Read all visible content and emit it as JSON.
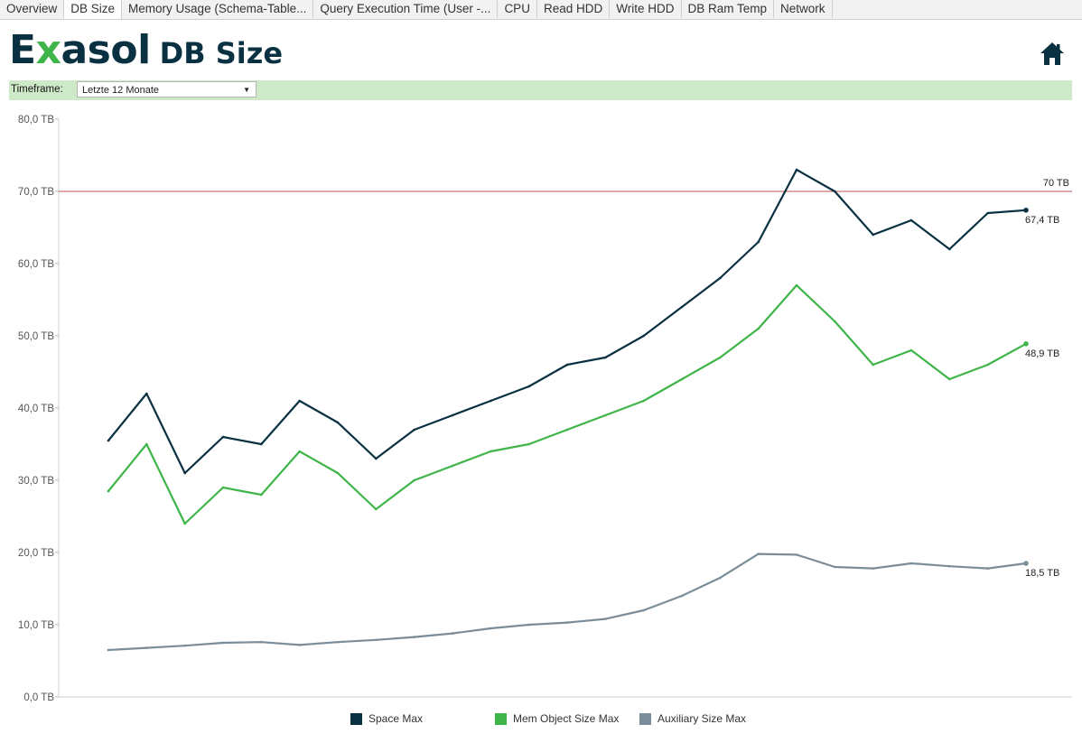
{
  "tabs": [
    {
      "label": "Overview"
    },
    {
      "label": "DB Size",
      "active": true
    },
    {
      "label": "Memory Usage (Schema-Table..."
    },
    {
      "label": "Query Execution Time (User -..."
    },
    {
      "label": "CPU"
    },
    {
      "label": "Read HDD"
    },
    {
      "label": "Write HDD"
    },
    {
      "label": "DB Ram Temp"
    },
    {
      "label": "Network"
    }
  ],
  "header": {
    "logo_text": "Exasol",
    "title": "DB Size",
    "home_icon": "home-icon"
  },
  "filter": {
    "label": "Timeframe:",
    "value": "Letzte 12 Monate"
  },
  "colors": {
    "space": "#093142",
    "mem": "#3fb549",
    "aux": "#7b8d99",
    "refline": "#c0504d",
    "accent_bar": "#cde9c7"
  },
  "chart_data": {
    "type": "line",
    "ylim": [
      0,
      80
    ],
    "yticks": [
      "0,0 TB",
      "10,0 TB",
      "20,0 TB",
      "30,0 TB",
      "40,0 TB",
      "50,0 TB",
      "60,0 TB",
      "70,0 TB",
      "80,0 TB"
    ],
    "reference_line": {
      "value": 70,
      "label": "70 TB"
    },
    "x": [
      0,
      0.5,
      1,
      1.5,
      2,
      2.5,
      3,
      3.5,
      4,
      4.5,
      5,
      5.5,
      6,
      6.5,
      7,
      7.5,
      8,
      8.5,
      9,
      9.5,
      10,
      10.5,
      11,
      11.5,
      12
    ],
    "series": [
      {
        "name": "Space Max",
        "color": "#093142",
        "end_label": "67,4 TB",
        "values": [
          35.5,
          42,
          31,
          36,
          35,
          41,
          38,
          33,
          37,
          39,
          41,
          43,
          46,
          47,
          50,
          54,
          58,
          63,
          73,
          70,
          64,
          66,
          62,
          67,
          67.4
        ]
      },
      {
        "name": "Mem Object Size Max",
        "color": "#3fb549",
        "end_label": "48,9 TB",
        "values": [
          28.5,
          35,
          24,
          29,
          28,
          34,
          31,
          26,
          30,
          32,
          34,
          35,
          37,
          39,
          41,
          44,
          47,
          51,
          57,
          52,
          46,
          48,
          44,
          46,
          48.9
        ]
      },
      {
        "name": "Auxiliary Size Max",
        "color": "#7b8d99",
        "end_label": "18,5 TB",
        "values": [
          6.5,
          6.8,
          7.1,
          7.5,
          7.6,
          7.2,
          7.6,
          7.9,
          8.3,
          8.8,
          9.5,
          10,
          10.3,
          10.8,
          12,
          14,
          16.5,
          19.8,
          19.7,
          18,
          17.8,
          18.5,
          18.1,
          17.8,
          18.5
        ]
      }
    ]
  }
}
